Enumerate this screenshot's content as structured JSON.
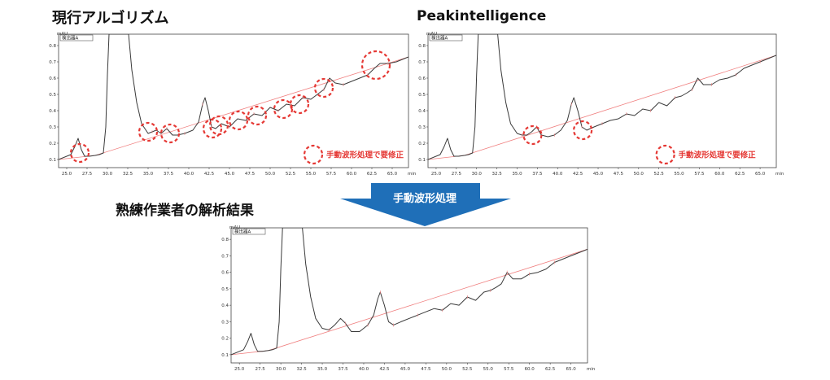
{
  "headings": {
    "current": "現行アルゴリズム",
    "peakintelligence": "Peakintelligence",
    "expert": "熟練作業者の解析結果"
  },
  "arrow_label": "手動波形処理",
  "note_label": "手動波形処理で要修正",
  "colors": {
    "trace": "#3a3a3a",
    "baseline": "#f08080",
    "marker": "#e53935",
    "arrow": "#1f6fb8",
    "arrow_text": "#ffffff",
    "axis": "#444444"
  },
  "chart_data": [
    {
      "id": "current",
      "type": "line",
      "title": "現行アルゴリズム",
      "ylabel": "mAU",
      "legend": "検出器A",
      "xunit": "min",
      "xlim": [
        24.0,
        67.0
      ],
      "ylim": [
        0.05,
        0.87
      ],
      "xticks": [
        "25.0",
        "27.5",
        "30.0",
        "32.5",
        "35.0",
        "37.5",
        "40.0",
        "42.5",
        "45.0",
        "47.5",
        "50.0",
        "52.5",
        "55.0",
        "57.5",
        "60.0",
        "62.5",
        "65.0"
      ],
      "yticks": [
        "0.1",
        "0.2",
        "0.3",
        "0.4",
        "0.5",
        "0.6",
        "0.7",
        "0.8"
      ],
      "series": [
        {
          "role": "signal",
          "x": [
            24.0,
            25.5,
            26.0,
            26.4,
            26.8,
            27.2,
            27.8,
            28.5,
            29.0,
            29.5,
            29.8,
            30.0,
            30.2,
            32.6,
            33.0,
            33.6,
            34.2,
            35.0,
            35.5,
            36.0,
            36.6,
            37.3,
            38.0,
            38.6,
            39.5,
            40.5,
            41.2,
            41.7,
            42.0,
            42.4,
            42.8,
            43.3,
            44.0,
            45.0,
            46.0,
            47.0,
            48.0,
            49.0,
            50.0,
            51.0,
            52.0,
            53.0,
            54.0,
            55.0,
            55.8,
            56.6,
            57.3,
            58.0,
            59.0,
            60.0,
            61.0,
            62.0,
            62.8,
            63.5,
            64.5,
            65.5,
            66.5,
            67.0
          ],
          "y": [
            0.1,
            0.13,
            0.18,
            0.23,
            0.16,
            0.12,
            0.12,
            0.125,
            0.13,
            0.14,
            0.3,
            0.62,
            0.87,
            0.87,
            0.65,
            0.45,
            0.32,
            0.26,
            0.27,
            0.28,
            0.26,
            0.29,
            0.25,
            0.25,
            0.26,
            0.28,
            0.33,
            0.44,
            0.48,
            0.4,
            0.3,
            0.29,
            0.32,
            0.3,
            0.35,
            0.34,
            0.38,
            0.37,
            0.42,
            0.4,
            0.44,
            0.43,
            0.48,
            0.47,
            0.5,
            0.53,
            0.6,
            0.57,
            0.56,
            0.58,
            0.6,
            0.62,
            0.66,
            0.69,
            0.69,
            0.7,
            0.72,
            0.73
          ]
        },
        {
          "role": "baseline",
          "x": [
            24.0,
            28.5,
            67.0
          ],
          "y": [
            0.1,
            0.125,
            0.73
          ]
        }
      ],
      "markers_x": [
        26.6,
        35.0,
        37.7,
        42.9,
        43.7,
        46.1,
        48.4,
        51.6,
        53.6,
        56.6,
        63.0
      ],
      "markers_y": [
        0.14,
        0.27,
        0.26,
        0.29,
        0.31,
        0.34,
        0.37,
        0.41,
        0.44,
        0.54,
        0.68
      ],
      "note": {
        "x": 55.3,
        "y": 0.13
      }
    },
    {
      "id": "peakintelligence",
      "type": "line",
      "title": "Peakintelligence",
      "ylabel": "mAU",
      "legend": "検出器A",
      "xunit": "min",
      "xlim": [
        24.0,
        67.0
      ],
      "ylim": [
        0.05,
        0.87
      ],
      "xticks": [
        "25.0",
        "27.5",
        "30.0",
        "32.5",
        "35.0",
        "37.5",
        "40.0",
        "42.5",
        "45.0",
        "47.5",
        "50.0",
        "52.5",
        "55.0",
        "57.5",
        "60.0",
        "62.5",
        "65.0"
      ],
      "yticks": [
        "0.1",
        "0.2",
        "0.3",
        "0.4",
        "0.5",
        "0.6",
        "0.7",
        "0.8"
      ],
      "series": [
        {
          "role": "signal",
          "x": [
            24.0,
            25.5,
            26.0,
            26.4,
            26.8,
            27.2,
            27.8,
            28.5,
            29.0,
            29.5,
            29.8,
            30.0,
            30.2,
            32.6,
            33.0,
            33.6,
            34.2,
            35.0,
            35.6,
            36.2,
            36.8,
            37.4,
            38.0,
            38.8,
            39.6,
            40.4,
            41.2,
            41.7,
            42.0,
            42.5,
            43.0,
            43.6,
            44.5,
            45.5,
            46.5,
            47.5,
            48.5,
            49.5,
            50.5,
            51.5,
            52.5,
            53.5,
            54.5,
            55.3,
            56.0,
            56.6,
            57.3,
            58.0,
            59.0,
            60.0,
            61.0,
            62.0,
            63.0,
            64.0,
            65.0,
            66.0,
            67.0
          ],
          "y": [
            0.1,
            0.13,
            0.18,
            0.23,
            0.16,
            0.12,
            0.12,
            0.125,
            0.13,
            0.14,
            0.3,
            0.62,
            0.87,
            0.87,
            0.65,
            0.45,
            0.32,
            0.26,
            0.25,
            0.25,
            0.27,
            0.3,
            0.25,
            0.24,
            0.25,
            0.28,
            0.34,
            0.44,
            0.48,
            0.4,
            0.3,
            0.28,
            0.3,
            0.32,
            0.34,
            0.35,
            0.38,
            0.37,
            0.41,
            0.4,
            0.45,
            0.43,
            0.48,
            0.49,
            0.51,
            0.53,
            0.6,
            0.56,
            0.56,
            0.59,
            0.6,
            0.62,
            0.66,
            0.68,
            0.7,
            0.72,
            0.74
          ]
        },
        {
          "role": "baseline",
          "x": [
            24.0,
            28.5,
            67.0
          ],
          "y": [
            0.1,
            0.125,
            0.74
          ]
        }
      ],
      "markers_x": [
        36.9,
        43.1
      ],
      "markers_y": [
        0.25,
        0.28
      ],
      "note": {
        "x": 53.3,
        "y": 0.13
      }
    },
    {
      "id": "expert",
      "type": "line",
      "title": "熟練作業者の解析結果",
      "ylabel": "mAU",
      "legend": "検出器A",
      "xunit": "min",
      "xlim": [
        24.0,
        67.0
      ],
      "ylim": [
        0.05,
        0.87
      ],
      "xticks": [
        "25.0",
        "27.5",
        "30.0",
        "32.5",
        "35.0",
        "37.5",
        "40.0",
        "42.5",
        "45.0",
        "47.5",
        "50.0",
        "52.5",
        "55.0",
        "57.5",
        "60.0",
        "62.5",
        "65.0"
      ],
      "yticks": [
        "0.1",
        "0.2",
        "0.3",
        "0.4",
        "0.5",
        "0.6",
        "0.7",
        "0.8"
      ],
      "series": [
        {
          "role": "signal",
          "x": [
            24.0,
            25.5,
            26.0,
            26.4,
            26.8,
            27.2,
            27.8,
            28.5,
            29.0,
            29.5,
            29.8,
            30.0,
            30.2,
            32.6,
            33.0,
            33.6,
            34.2,
            35.0,
            35.8,
            36.5,
            37.2,
            37.8,
            38.5,
            39.5,
            40.5,
            41.2,
            41.7,
            42.0,
            42.5,
            43.0,
            43.6,
            44.5,
            45.5,
            46.5,
            47.5,
            48.5,
            49.5,
            50.5,
            51.5,
            52.5,
            53.5,
            54.5,
            55.3,
            56.0,
            56.6,
            57.3,
            58.0,
            59.0,
            60.0,
            61.0,
            62.0,
            63.0,
            64.0,
            65.0,
            66.0,
            67.0
          ],
          "y": [
            0.1,
            0.13,
            0.18,
            0.23,
            0.16,
            0.12,
            0.12,
            0.125,
            0.13,
            0.14,
            0.3,
            0.62,
            0.87,
            0.87,
            0.65,
            0.45,
            0.32,
            0.26,
            0.25,
            0.28,
            0.32,
            0.29,
            0.24,
            0.24,
            0.28,
            0.34,
            0.44,
            0.48,
            0.4,
            0.3,
            0.28,
            0.3,
            0.32,
            0.34,
            0.36,
            0.38,
            0.37,
            0.41,
            0.4,
            0.45,
            0.43,
            0.48,
            0.49,
            0.51,
            0.53,
            0.6,
            0.56,
            0.56,
            0.59,
            0.6,
            0.62,
            0.66,
            0.68,
            0.7,
            0.72,
            0.74
          ]
        },
        {
          "role": "baseline",
          "x": [
            24.0,
            28.5,
            67.0
          ],
          "y": [
            0.1,
            0.125,
            0.74
          ]
        }
      ],
      "markers_x": [],
      "markers_y": []
    }
  ]
}
